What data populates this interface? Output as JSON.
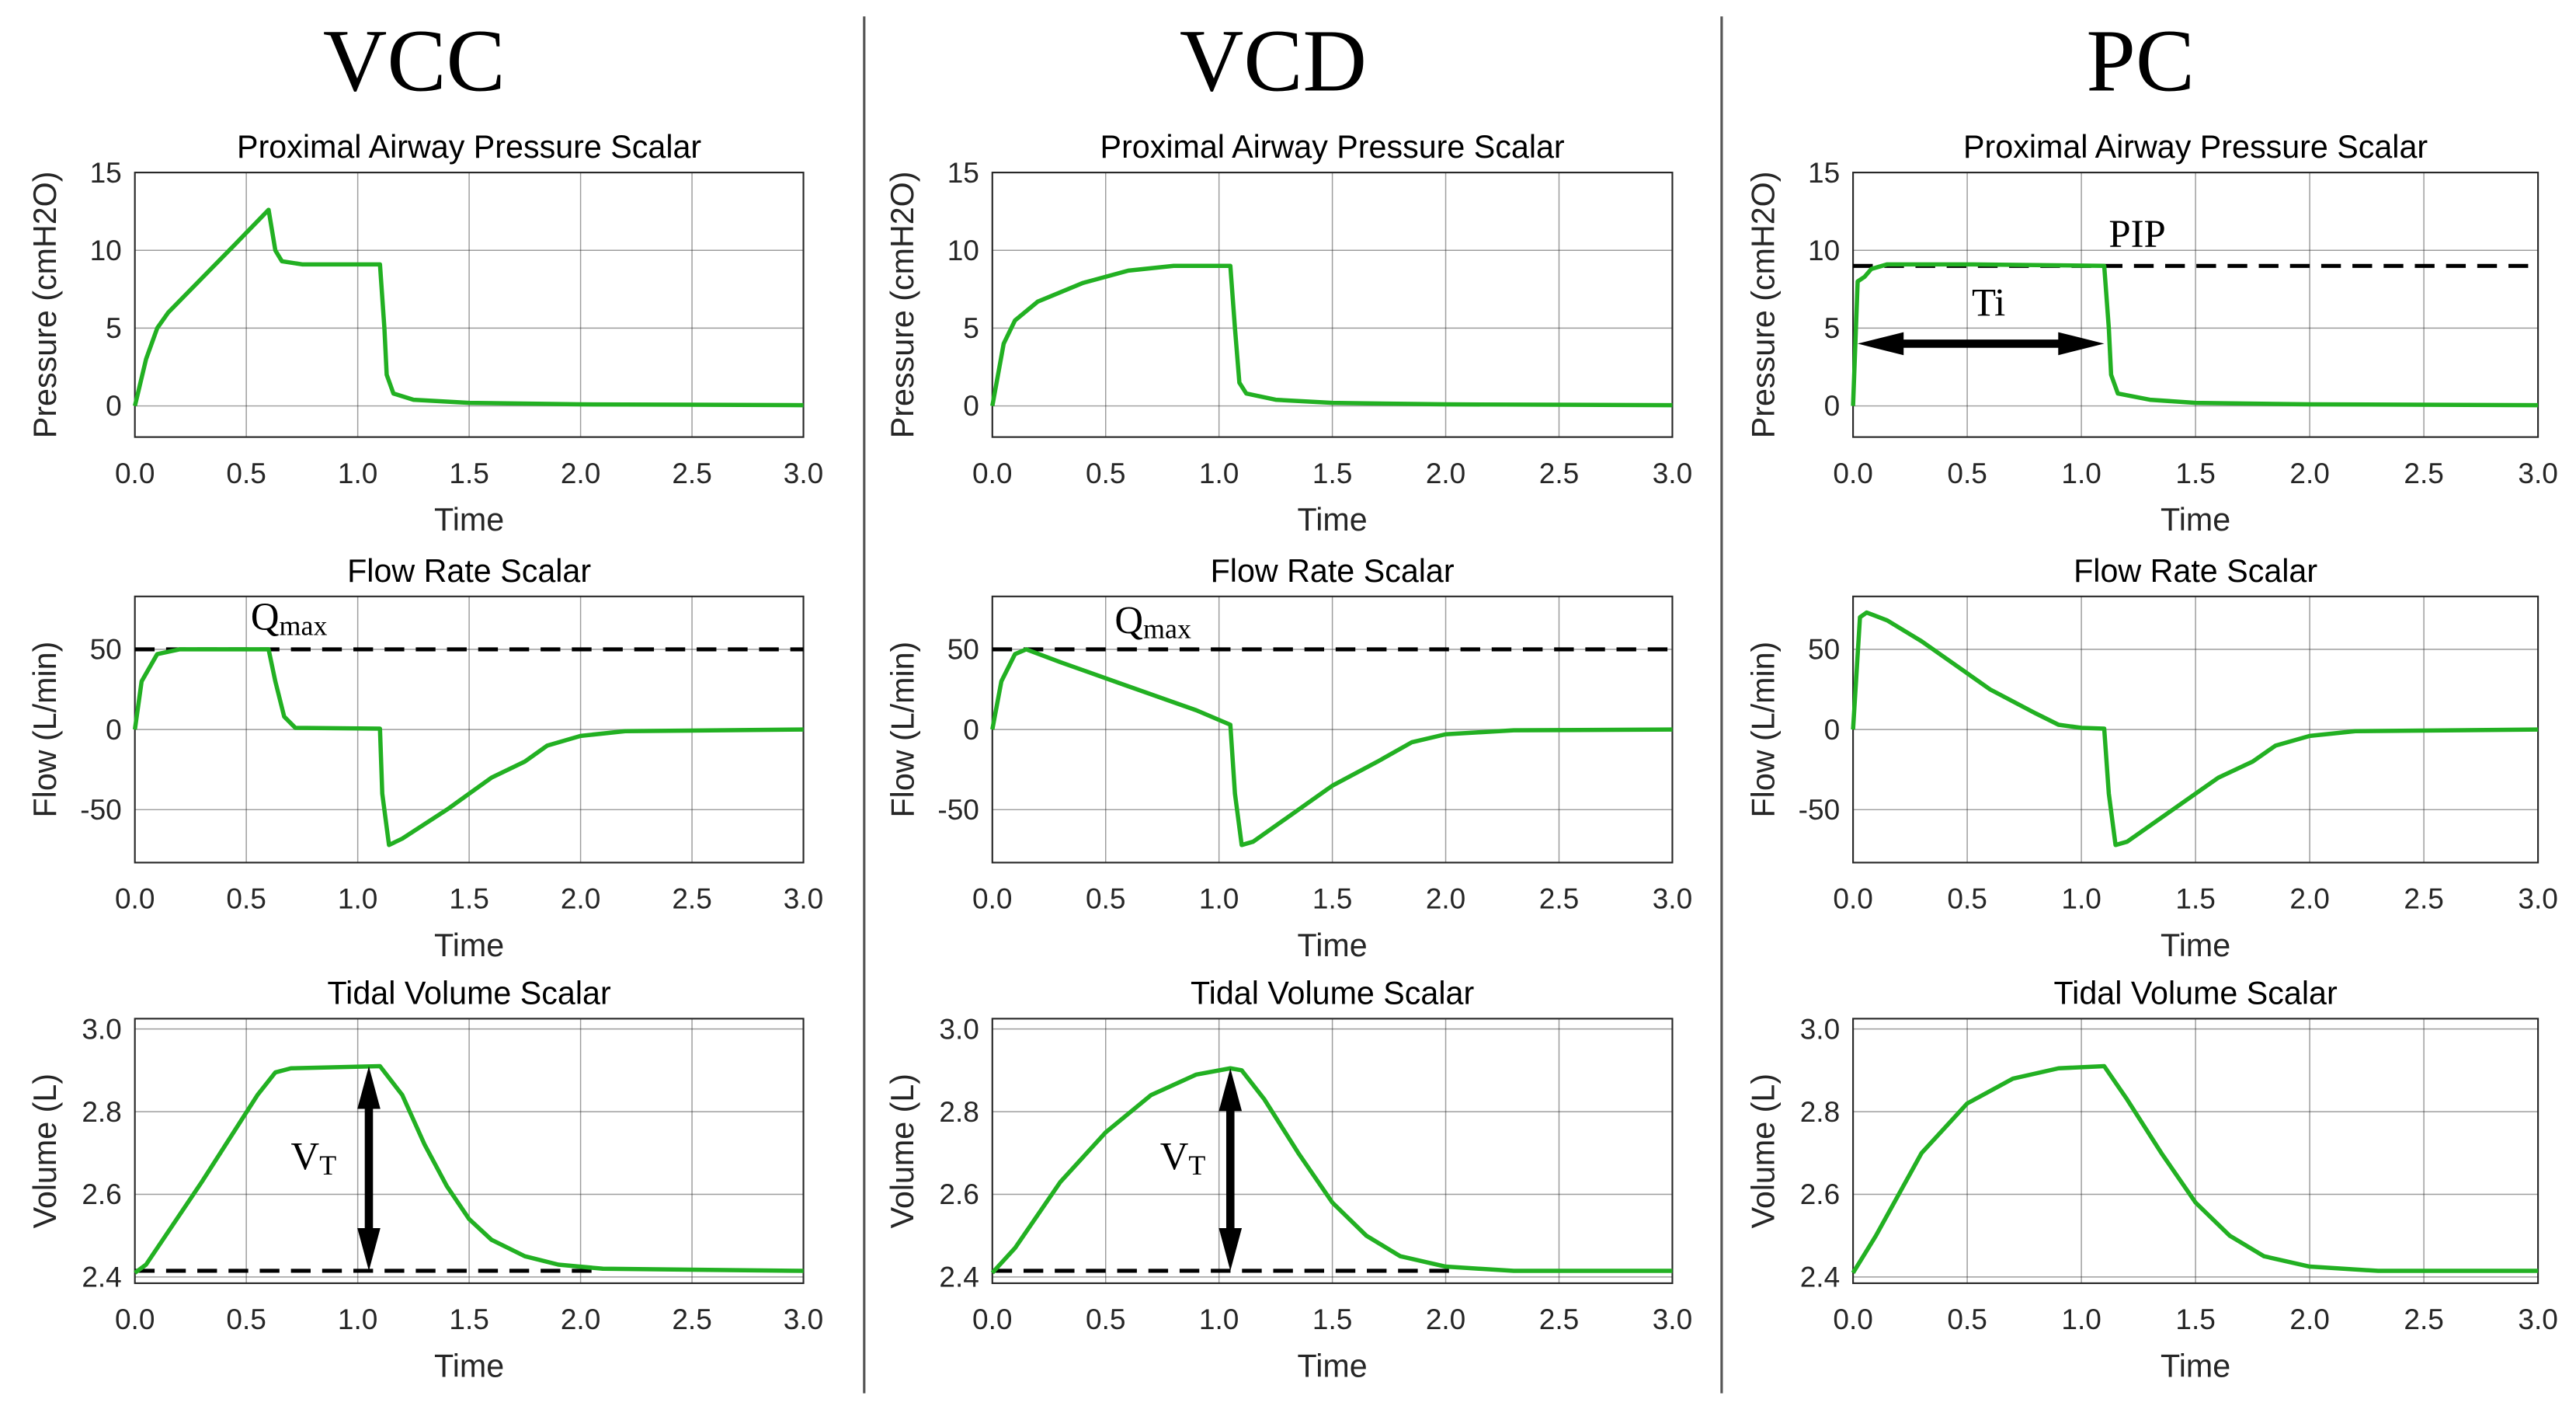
{
  "colors": {
    "line": "#22b022",
    "grid": "#262626",
    "annotation": "#000000"
  },
  "columns": [
    "VCC",
    "VCD",
    "PC"
  ],
  "chart_data": [
    {
      "type": "line",
      "column": "VCC",
      "title": "Proximal Airway Pressure Scalar",
      "xlabel": "Time",
      "ylabel": "Pressure (cmH2O)",
      "xlim": [
        0,
        3
      ],
      "ylim": [
        -2,
        15
      ],
      "xticks": [
        0,
        0.5,
        1,
        1.5,
        2,
        2.5,
        3
      ],
      "xtick_labels": [
        "0.0",
        "0.5",
        "1.0",
        "1.5",
        "2.0",
        "2.5",
        "3.0"
      ],
      "yticks": [
        0,
        5,
        10,
        15
      ],
      "ytick_labels": [
        "0",
        "5",
        "10",
        "15"
      ],
      "grid": true,
      "series": [
        {
          "name": "pressure",
          "points": [
            [
              0,
              0
            ],
            [
              0.05,
              3
            ],
            [
              0.1,
              5
            ],
            [
              0.15,
              6
            ],
            [
              0.3,
              8.2
            ],
            [
              0.45,
              10.4
            ],
            [
              0.6,
              12.6
            ],
            [
              0.63,
              10
            ],
            [
              0.66,
              9.3
            ],
            [
              0.75,
              9.1
            ],
            [
              1.1,
              9.1
            ],
            [
              1.12,
              5
            ],
            [
              1.13,
              2
            ],
            [
              1.16,
              0.8
            ],
            [
              1.25,
              0.4
            ],
            [
              1.5,
              0.2
            ],
            [
              2,
              0.1
            ],
            [
              3,
              0.05
            ]
          ]
        }
      ],
      "annotations": []
    },
    {
      "type": "line",
      "column": "VCC",
      "title": "Flow Rate Scalar",
      "xlabel": "Time",
      "ylabel": "Flow (L/min)",
      "xlim": [
        0,
        3
      ],
      "ylim": [
        -83,
        83
      ],
      "xticks": [
        0,
        0.5,
        1,
        1.5,
        2,
        2.5,
        3
      ],
      "xtick_labels": [
        "0.0",
        "0.5",
        "1.0",
        "1.5",
        "2.0",
        "2.5",
        "3.0"
      ],
      "yticks": [
        -50,
        0,
        50
      ],
      "ytick_labels": [
        "-50",
        "0",
        "50"
      ],
      "grid": true,
      "series": [
        {
          "name": "flow",
          "points": [
            [
              0,
              0
            ],
            [
              0.03,
              30
            ],
            [
              0.1,
              47
            ],
            [
              0.2,
              50
            ],
            [
              0.6,
              50
            ],
            [
              0.63,
              30
            ],
            [
              0.67,
              8
            ],
            [
              0.72,
              1
            ],
            [
              1.1,
              0.5
            ],
            [
              1.11,
              -40
            ],
            [
              1.14,
              -72
            ],
            [
              1.2,
              -68
            ],
            [
              1.4,
              -50
            ],
            [
              1.6,
              -30
            ],
            [
              1.75,
              -20
            ],
            [
              1.85,
              -10
            ],
            [
              2.0,
              -4
            ],
            [
              2.2,
              -1
            ],
            [
              3,
              0
            ]
          ]
        }
      ],
      "annotations": [
        {
          "kind": "hline",
          "y": 50,
          "x0": 0,
          "x1": 3
        },
        {
          "kind": "label",
          "text": "Q",
          "sub": "max",
          "x": 0.52,
          "y": 62
        }
      ]
    },
    {
      "type": "line",
      "column": "VCC",
      "title": "Tidal Volume Scalar",
      "xlabel": "Time",
      "ylabel": "Volume (L)",
      "xlim": [
        0,
        3
      ],
      "ylim": [
        2.385,
        3.025
      ],
      "xticks": [
        0,
        0.5,
        1,
        1.5,
        2,
        2.5,
        3
      ],
      "xtick_labels": [
        "0.0",
        "0.5",
        "1.0",
        "1.5",
        "2.0",
        "2.5",
        "3.0"
      ],
      "yticks": [
        2.4,
        2.6,
        2.8,
        3.0
      ],
      "ytick_labels": [
        "2.4",
        "2.6",
        "2.8",
        "3.0"
      ],
      "grid": true,
      "series": [
        {
          "name": "volume",
          "points": [
            [
              0,
              2.41
            ],
            [
              0.05,
              2.43
            ],
            [
              0.3,
              2.63
            ],
            [
              0.55,
              2.84
            ],
            [
              0.63,
              2.895
            ],
            [
              0.7,
              2.905
            ],
            [
              1.1,
              2.91
            ],
            [
              1.2,
              2.84
            ],
            [
              1.3,
              2.72
            ],
            [
              1.4,
              2.62
            ],
            [
              1.5,
              2.54
            ],
            [
              1.6,
              2.49
            ],
            [
              1.75,
              2.45
            ],
            [
              1.9,
              2.43
            ],
            [
              2.1,
              2.42
            ],
            [
              3,
              2.415
            ]
          ]
        }
      ],
      "annotations": [
        {
          "kind": "hline",
          "y": 2.415,
          "x0": 0,
          "x1": 2.05
        },
        {
          "kind": "varrow",
          "x": 1.05,
          "y0": 2.415,
          "y1": 2.91
        },
        {
          "kind": "label",
          "text": "V",
          "sub": "T",
          "x": 0.7,
          "y": 2.66
        }
      ]
    },
    {
      "type": "line",
      "column": "VCD",
      "title": "Proximal Airway Pressure Scalar",
      "xlabel": "Time",
      "ylabel": "Pressure (cmH2O)",
      "xlim": [
        0,
        3
      ],
      "ylim": [
        -2,
        15
      ],
      "xticks": [
        0,
        0.5,
        1,
        1.5,
        2,
        2.5,
        3
      ],
      "xtick_labels": [
        "0.0",
        "0.5",
        "1.0",
        "1.5",
        "2.0",
        "2.5",
        "3.0"
      ],
      "yticks": [
        0,
        5,
        10,
        15
      ],
      "ytick_labels": [
        "0",
        "5",
        "10",
        "15"
      ],
      "grid": true,
      "series": [
        {
          "name": "pressure",
          "points": [
            [
              0,
              0
            ],
            [
              0.05,
              4
            ],
            [
              0.1,
              5.5
            ],
            [
              0.2,
              6.7
            ],
            [
              0.4,
              7.9
            ],
            [
              0.6,
              8.7
            ],
            [
              0.8,
              9
            ],
            [
              1.05,
              9
            ],
            [
              1.07,
              5
            ],
            [
              1.09,
              1.5
            ],
            [
              1.12,
              0.8
            ],
            [
              1.25,
              0.4
            ],
            [
              1.5,
              0.2
            ],
            [
              2,
              0.1
            ],
            [
              3,
              0.05
            ]
          ]
        }
      ],
      "annotations": []
    },
    {
      "type": "line",
      "column": "VCD",
      "title": "Flow Rate Scalar",
      "xlabel": "Time",
      "ylabel": "Flow (L/min)",
      "xlim": [
        0,
        3
      ],
      "ylim": [
        -83,
        83
      ],
      "xticks": [
        0,
        0.5,
        1,
        1.5,
        2,
        2.5,
        3
      ],
      "xtick_labels": [
        "0.0",
        "0.5",
        "1.0",
        "1.5",
        "2.0",
        "2.5",
        "3.0"
      ],
      "yticks": [
        -50,
        0,
        50
      ],
      "ytick_labels": [
        "-50",
        "0",
        "50"
      ],
      "grid": true,
      "series": [
        {
          "name": "flow",
          "points": [
            [
              0,
              0
            ],
            [
              0.04,
              30
            ],
            [
              0.1,
              47
            ],
            [
              0.15,
              50
            ],
            [
              0.3,
              42
            ],
            [
              0.6,
              27
            ],
            [
              0.9,
              12
            ],
            [
              1.05,
              3
            ],
            [
              1.07,
              -40
            ],
            [
              1.1,
              -72
            ],
            [
              1.15,
              -70
            ],
            [
              1.3,
              -55
            ],
            [
              1.5,
              -35
            ],
            [
              1.7,
              -20
            ],
            [
              1.85,
              -8
            ],
            [
              2.0,
              -3
            ],
            [
              2.3,
              -0.5
            ],
            [
              3,
              0
            ]
          ]
        }
      ],
      "annotations": [
        {
          "kind": "hline",
          "y": 50,
          "x0": 0,
          "x1": 3
        },
        {
          "kind": "label",
          "text": "Q",
          "sub": "max",
          "x": 0.54,
          "y": 60
        }
      ]
    },
    {
      "type": "line",
      "column": "VCD",
      "title": "Tidal Volume Scalar",
      "xlabel": "Time",
      "ylabel": "Volume (L)",
      "xlim": [
        0,
        3
      ],
      "ylim": [
        2.385,
        3.025
      ],
      "xticks": [
        0,
        0.5,
        1,
        1.5,
        2,
        2.5,
        3
      ],
      "xtick_labels": [
        "0.0",
        "0.5",
        "1.0",
        "1.5",
        "2.0",
        "2.5",
        "3.0"
      ],
      "yticks": [
        2.4,
        2.6,
        2.8,
        3.0
      ],
      "ytick_labels": [
        "2.4",
        "2.6",
        "2.8",
        "3.0"
      ],
      "grid": true,
      "series": [
        {
          "name": "volume",
          "points": [
            [
              0,
              2.41
            ],
            [
              0.1,
              2.47
            ],
            [
              0.3,
              2.63
            ],
            [
              0.5,
              2.75
            ],
            [
              0.7,
              2.84
            ],
            [
              0.9,
              2.89
            ],
            [
              1.05,
              2.905
            ],
            [
              1.1,
              2.9
            ],
            [
              1.2,
              2.83
            ],
            [
              1.35,
              2.7
            ],
            [
              1.5,
              2.58
            ],
            [
              1.65,
              2.5
            ],
            [
              1.8,
              2.45
            ],
            [
              2.0,
              2.425
            ],
            [
              2.3,
              2.415
            ],
            [
              3,
              2.415
            ]
          ]
        }
      ],
      "annotations": [
        {
          "kind": "hline",
          "y": 2.415,
          "x0": 0,
          "x1": 2.05
        },
        {
          "kind": "varrow",
          "x": 1.05,
          "y0": 2.415,
          "y1": 2.905
        },
        {
          "kind": "label",
          "text": "V",
          "sub": "T",
          "x": 0.74,
          "y": 2.66
        }
      ]
    },
    {
      "type": "line",
      "column": "PC",
      "title": "Proximal Airway Pressure Scalar",
      "xlabel": "Time",
      "ylabel": "Pressure (cmH2O)",
      "xlim": [
        0,
        3
      ],
      "ylim": [
        -2,
        15
      ],
      "xticks": [
        0,
        0.5,
        1,
        1.5,
        2,
        2.5,
        3
      ],
      "xtick_labels": [
        "0.0",
        "0.5",
        "1.0",
        "1.5",
        "2.0",
        "2.5",
        "3.0"
      ],
      "yticks": [
        0,
        5,
        10,
        15
      ],
      "ytick_labels": [
        "0",
        "5",
        "10",
        "15"
      ],
      "grid": true,
      "series": [
        {
          "name": "pressure",
          "points": [
            [
              0,
              0
            ],
            [
              0.02,
              8
            ],
            [
              0.05,
              8.3
            ],
            [
              0.08,
              8.8
            ],
            [
              0.15,
              9.1
            ],
            [
              0.5,
              9.1
            ],
            [
              1.1,
              9
            ],
            [
              1.12,
              5
            ],
            [
              1.13,
              2
            ],
            [
              1.16,
              0.8
            ],
            [
              1.3,
              0.4
            ],
            [
              1.5,
              0.2
            ],
            [
              2,
              0.1
            ],
            [
              3,
              0.05
            ]
          ]
        }
      ],
      "annotations": [
        {
          "kind": "hline",
          "y": 9,
          "x0": 0,
          "x1": 3
        },
        {
          "kind": "label",
          "text": "PIP",
          "sub": "",
          "x": 1.12,
          "y": 10.2
        },
        {
          "kind": "harrow",
          "y": 4,
          "x0": 0.02,
          "x1": 1.1
        },
        {
          "kind": "label",
          "text": "Ti",
          "sub": "",
          "x": 0.52,
          "y": 5.8
        }
      ]
    },
    {
      "type": "line",
      "column": "PC",
      "title": "Flow Rate Scalar",
      "xlabel": "Time",
      "ylabel": "Flow (L/min)",
      "xlim": [
        0,
        3
      ],
      "ylim": [
        -83,
        83
      ],
      "xticks": [
        0,
        0.5,
        1,
        1.5,
        2,
        2.5,
        3
      ],
      "xtick_labels": [
        "0.0",
        "0.5",
        "1.0",
        "1.5",
        "2.0",
        "2.5",
        "3.0"
      ],
      "yticks": [
        -50,
        0,
        50
      ],
      "ytick_labels": [
        "-50",
        "0",
        "50"
      ],
      "grid": true,
      "series": [
        {
          "name": "flow",
          "points": [
            [
              0,
              0
            ],
            [
              0.03,
              70
            ],
            [
              0.06,
              73
            ],
            [
              0.15,
              68
            ],
            [
              0.3,
              55
            ],
            [
              0.5,
              35
            ],
            [
              0.6,
              25
            ],
            [
              0.8,
              10
            ],
            [
              0.9,
              3
            ],
            [
              1.0,
              1
            ],
            [
              1.1,
              0.5
            ],
            [
              1.12,
              -40
            ],
            [
              1.15,
              -72
            ],
            [
              1.2,
              -70
            ],
            [
              1.4,
              -50
            ],
            [
              1.6,
              -30
            ],
            [
              1.75,
              -20
            ],
            [
              1.85,
              -10
            ],
            [
              2.0,
              -4
            ],
            [
              2.2,
              -1
            ],
            [
              3,
              0
            ]
          ]
        }
      ],
      "annotations": []
    },
    {
      "type": "line",
      "column": "PC",
      "title": "Tidal Volume Scalar",
      "xlabel": "Time",
      "ylabel": "Volume (L)",
      "xlim": [
        0,
        3
      ],
      "ylim": [
        2.385,
        3.025
      ],
      "xticks": [
        0,
        0.5,
        1,
        1.5,
        2,
        2.5,
        3
      ],
      "xtick_labels": [
        "0.0",
        "0.5",
        "1.0",
        "1.5",
        "2.0",
        "2.5",
        "3.0"
      ],
      "yticks": [
        2.4,
        2.6,
        2.8,
        3.0
      ],
      "ytick_labels": [
        "2.4",
        "2.6",
        "2.8",
        "3.0"
      ],
      "grid": true,
      "series": [
        {
          "name": "volume",
          "points": [
            [
              0,
              2.41
            ],
            [
              0.1,
              2.5
            ],
            [
              0.3,
              2.7
            ],
            [
              0.5,
              2.82
            ],
            [
              0.7,
              2.88
            ],
            [
              0.9,
              2.905
            ],
            [
              1.1,
              2.91
            ],
            [
              1.2,
              2.83
            ],
            [
              1.35,
              2.7
            ],
            [
              1.5,
              2.58
            ],
            [
              1.65,
              2.5
            ],
            [
              1.8,
              2.45
            ],
            [
              2.0,
              2.425
            ],
            [
              2.3,
              2.415
            ],
            [
              3,
              2.415
            ]
          ]
        }
      ],
      "annotations": []
    }
  ]
}
